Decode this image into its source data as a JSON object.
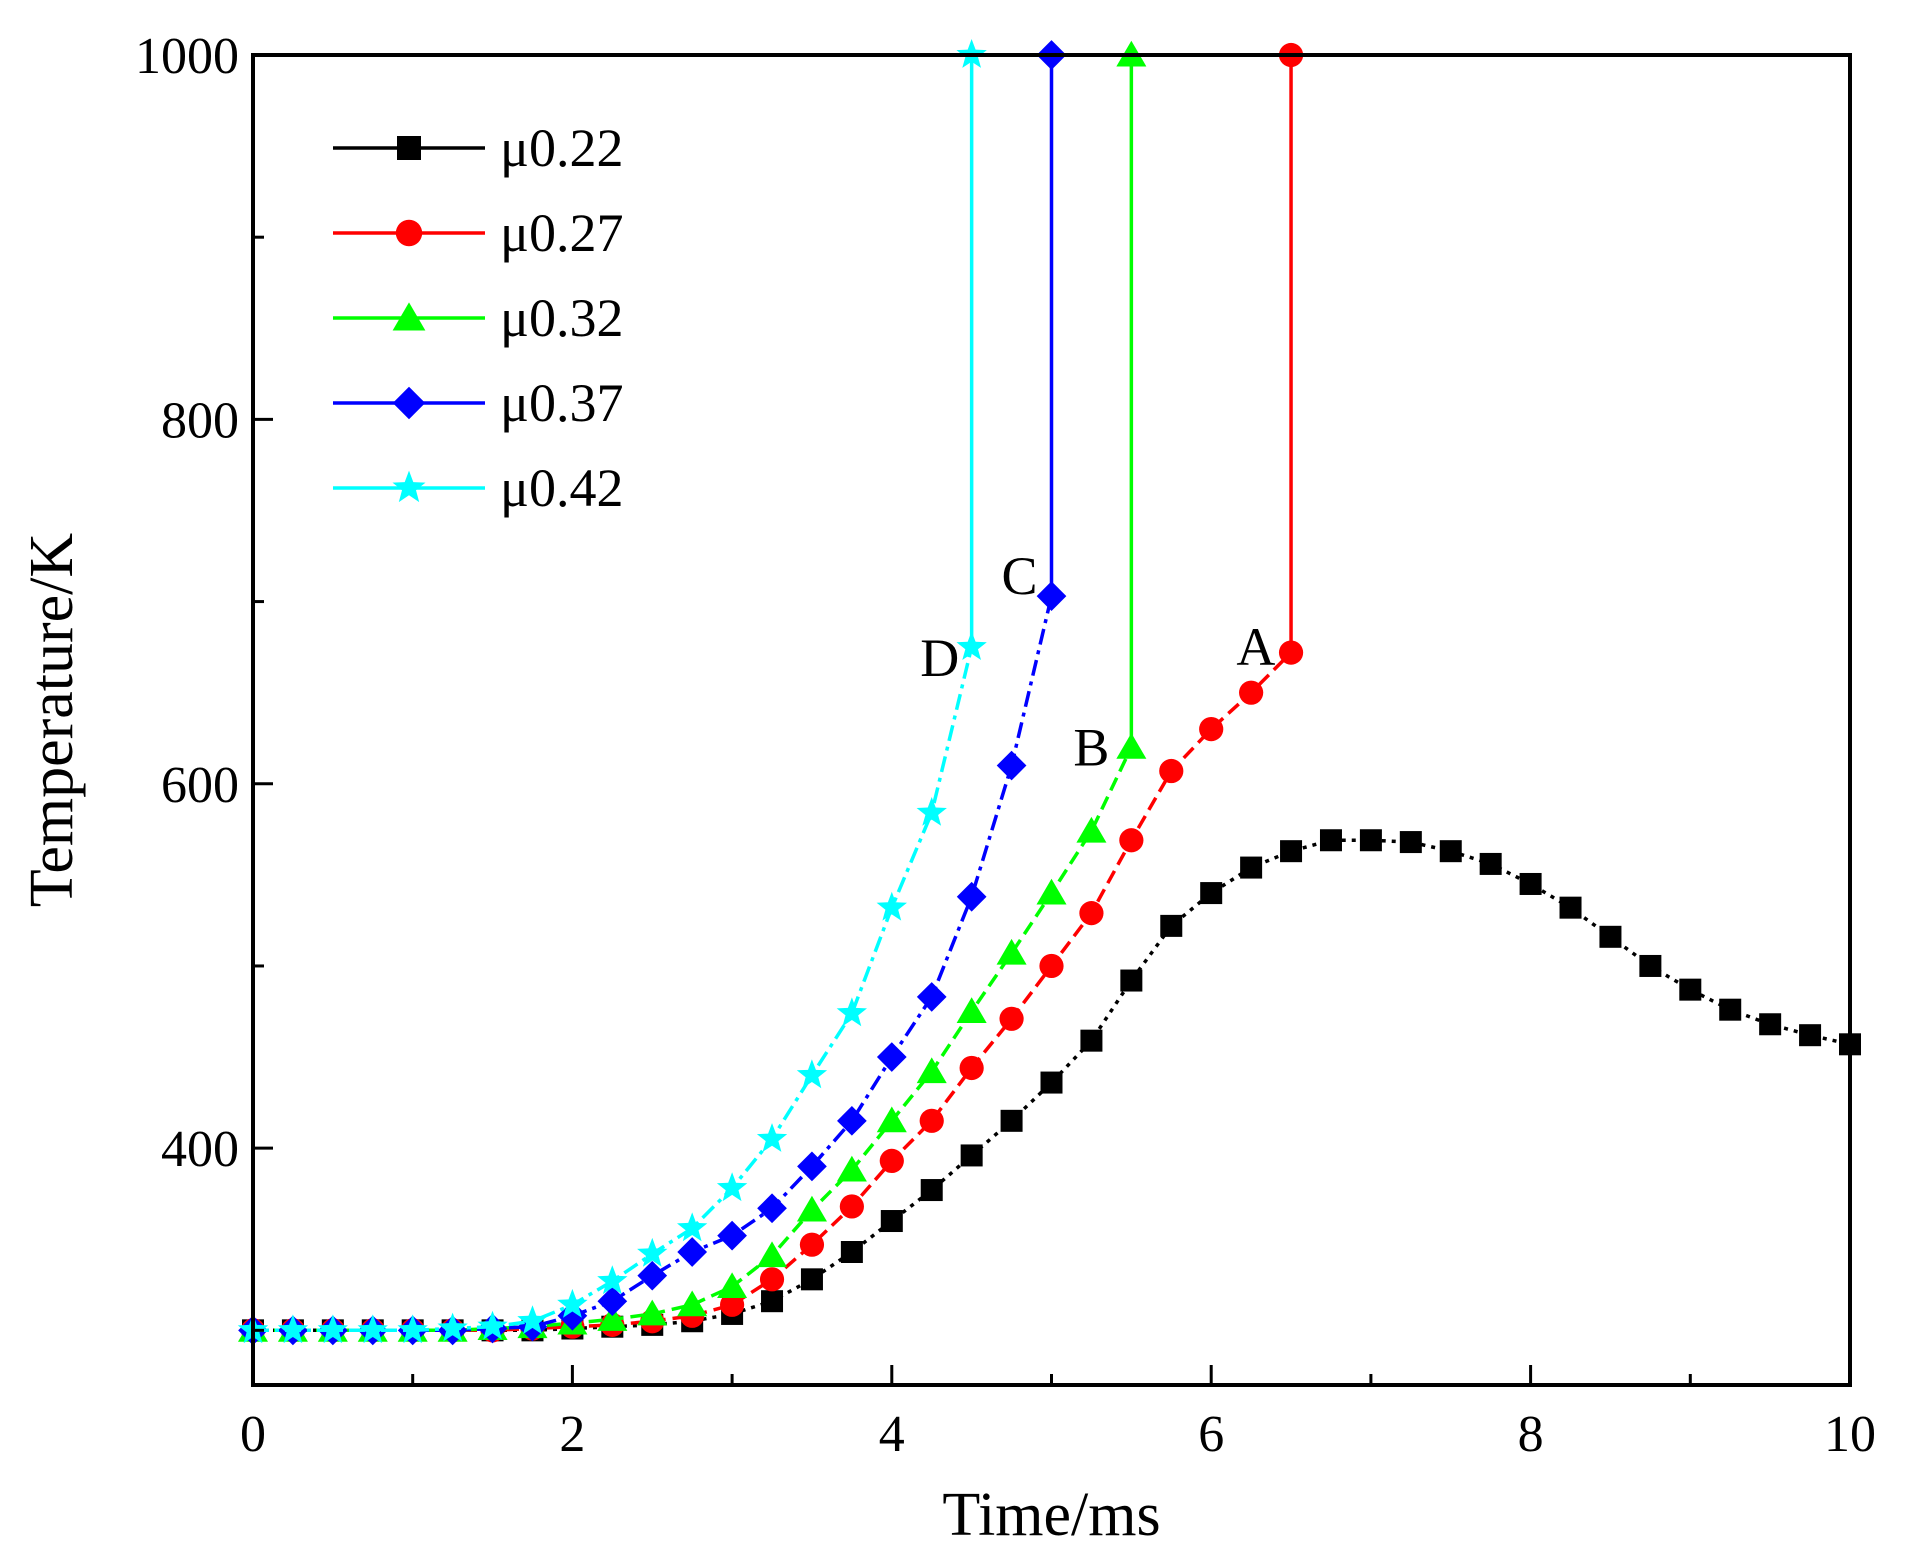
{
  "chart_data": {
    "type": "line",
    "title": "",
    "xlabel": "Time/ms",
    "ylabel": "Temperature/K",
    "xlim": [
      0,
      10
    ],
    "ylim": [
      270,
      1000
    ],
    "xticks": [
      "0",
      "2",
      "4",
      "6",
      "8",
      "10"
    ],
    "yticks": [
      "400",
      "600",
      "800",
      "1000"
    ],
    "legend_position": "top-left",
    "grid": false,
    "series": [
      {
        "name": "μ0.22",
        "color": "#000000",
        "marker": "square",
        "dash": "dot",
        "x": [
          0,
          0.25,
          0.5,
          0.75,
          1,
          1.25,
          1.5,
          1.75,
          2,
          2.25,
          2.5,
          2.75,
          3,
          3.25,
          3.5,
          3.75,
          4,
          4.25,
          4.5,
          4.75,
          5,
          5.25,
          5.5,
          5.75,
          6,
          6.25,
          6.5,
          6.75,
          7,
          7.25,
          7.5,
          7.75,
          8,
          8.25,
          8.5,
          8.75,
          9,
          9.25,
          9.5,
          9.75,
          10
        ],
        "y": [
          300,
          300,
          300,
          300,
          300,
          300,
          300,
          300,
          301,
          302,
          303,
          305,
          309,
          316,
          328,
          343,
          360,
          377,
          396,
          415,
          436,
          459,
          492,
          522,
          540,
          554,
          563,
          569,
          569,
          568,
          563,
          556,
          545,
          532,
          516,
          500,
          487,
          476,
          468,
          462,
          457
        ]
      },
      {
        "name": "μ0.27",
        "color": "#ff0000",
        "marker": "circle",
        "dash": "dash",
        "x": [
          0,
          0.25,
          0.5,
          0.75,
          1,
          1.25,
          1.5,
          1.75,
          2,
          2.25,
          2.5,
          2.75,
          3,
          3.25,
          3.5,
          3.75,
          4,
          4.25,
          4.5,
          4.75,
          5,
          5.25,
          5.5,
          5.75,
          6,
          6.25,
          6.5,
          6.5
        ],
        "y": [
          300,
          300,
          300,
          300,
          300,
          300,
          300,
          301,
          302,
          303,
          305,
          308,
          314,
          328,
          347,
          368,
          393,
          415,
          444,
          471,
          500,
          529,
          569,
          607,
          630,
          650,
          672,
          1000
        ]
      },
      {
        "name": "μ0.32",
        "color": "#00ff00",
        "marker": "triangle",
        "dash": "dash",
        "x": [
          0,
          0.25,
          0.5,
          0.75,
          1,
          1.25,
          1.5,
          1.75,
          2,
          2.25,
          2.5,
          2.75,
          3,
          3.25,
          3.5,
          3.75,
          4,
          4.25,
          4.5,
          4.75,
          5,
          5.25,
          5.5,
          5.5
        ],
        "y": [
          300,
          300,
          300,
          300,
          300,
          300,
          301,
          302,
          304,
          306,
          309,
          314,
          324,
          341,
          366,
          388,
          415,
          442,
          475,
          507,
          540,
          574,
          620,
          1000
        ]
      },
      {
        "name": "μ0.37",
        "color": "#0000ff",
        "marker": "diamond",
        "dash": "dashdot",
        "x": [
          0,
          0.25,
          0.5,
          0.75,
          1,
          1.25,
          1.5,
          1.75,
          2,
          2.25,
          2.5,
          2.75,
          3,
          3.25,
          3.5,
          3.75,
          4,
          4.25,
          4.5,
          4.75,
          5,
          5
        ],
        "y": [
          300,
          300,
          300,
          300,
          300,
          300,
          301,
          302,
          308,
          316,
          330,
          343,
          352,
          367,
          390,
          415,
          450,
          483,
          538,
          610,
          703,
          1000
        ]
      },
      {
        "name": "μ0.42",
        "color": "#00ffff",
        "marker": "star",
        "dash": "dashdot",
        "x": [
          0,
          0.25,
          0.5,
          0.75,
          1,
          1.25,
          1.5,
          1.75,
          2,
          2.25,
          2.5,
          2.75,
          3,
          3.25,
          3.5,
          3.75,
          4,
          4.25,
          4.5,
          4.5
        ],
        "y": [
          300,
          300,
          300,
          300,
          300,
          301,
          302,
          305,
          314,
          327,
          342,
          356,
          378,
          405,
          440,
          474,
          532,
          584,
          675,
          1000
        ]
      }
    ],
    "annotations": [
      {
        "text": "A",
        "x": 6.28,
        "y": 675
      },
      {
        "text": "B",
        "x": 5.25,
        "y": 620
      },
      {
        "text": "C",
        "x": 4.8,
        "y": 714
      },
      {
        "text": "D",
        "x": 4.3,
        "y": 669
      }
    ]
  }
}
